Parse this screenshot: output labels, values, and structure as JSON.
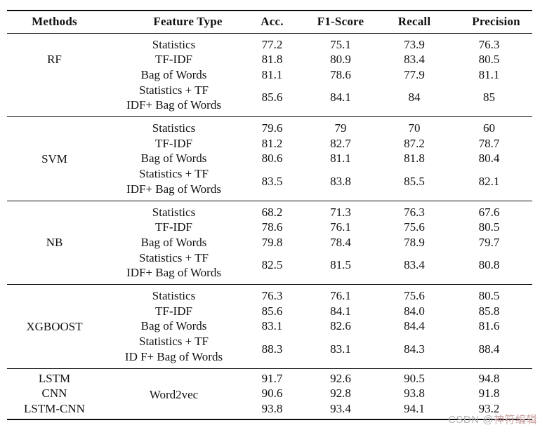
{
  "table": {
    "headers": [
      "Methods",
      "Feature Type",
      "Acc.",
      "F1-Score",
      "Recall",
      "Precision"
    ],
    "sections": [
      {
        "method": "RF",
        "rows": [
          {
            "feature": "Statistics",
            "values": [
              "77.2",
              "75.1",
              "73.9",
              "76.3"
            ]
          },
          {
            "feature": "TF-IDF",
            "values": [
              "81.8",
              "80.9",
              "83.4",
              "80.5"
            ]
          },
          {
            "feature": "Bag of Words",
            "values": [
              "81.1",
              "78.6",
              "77.9",
              "81.1"
            ]
          },
          {
            "feature_line1": "Statistics + TF",
            "feature_line2": "IDF+ Bag of Words",
            "values": [
              "85.6",
              "84.1",
              "84",
              "85"
            ]
          }
        ]
      },
      {
        "method": "SVM",
        "rows": [
          {
            "feature": "Statistics",
            "values": [
              "79.6",
              "79",
              "70",
              "60"
            ]
          },
          {
            "feature": "TF-IDF",
            "values": [
              "81.2",
              "82.7",
              "87.2",
              "78.7"
            ]
          },
          {
            "feature": "Bag of Words",
            "values": [
              "80.6",
              "81.1",
              "81.8",
              "80.4"
            ]
          },
          {
            "feature_line1": "Statistics + TF",
            "feature_line2": "IDF+ Bag of Words",
            "values": [
              "83.5",
              "83.8",
              "85.5",
              "82.1"
            ]
          }
        ]
      },
      {
        "method": "NB",
        "rows": [
          {
            "feature": "Statistics",
            "values": [
              "68.2",
              "71.3",
              "76.3",
              "67.6"
            ]
          },
          {
            "feature": "TF-IDF",
            "values": [
              "78.6",
              "76.1",
              "75.6",
              "80.5"
            ]
          },
          {
            "feature": "Bag of Words",
            "values": [
              "79.8",
              "78.4",
              "78.9",
              "79.7"
            ]
          },
          {
            "feature_line1": "Statistics + TF",
            "feature_line2": "IDF+ Bag of Words",
            "values": [
              "82.5",
              "81.5",
              "83.4",
              "80.8"
            ]
          }
        ]
      },
      {
        "method": "XGBOOST",
        "rows": [
          {
            "feature": "Statistics",
            "values": [
              "76.3",
              "76.1",
              "75.6",
              "80.5"
            ]
          },
          {
            "feature": "TF-IDF",
            "values": [
              "85.6",
              "84.1",
              "84.0",
              "85.8"
            ]
          },
          {
            "feature": "Bag of Words",
            "values": [
              "83.1",
              "82.6",
              "84.4",
              "81.6"
            ]
          },
          {
            "feature_line1": "Statistics + TF",
            "feature_line2": "ID F+ Bag of Words",
            "values": [
              "88.3",
              "83.1",
              "84.3",
              "88.4"
            ]
          }
        ]
      },
      {
        "feature": "Word2vec",
        "rows": [
          {
            "method": "LSTM",
            "values": [
              "91.7",
              "92.6",
              "90.5",
              "94.8"
            ]
          },
          {
            "method": "CNN",
            "values": [
              "90.6",
              "92.8",
              "93.8",
              "91.8"
            ]
          },
          {
            "method": "LSTM-CNN",
            "values": [
              "93.8",
              "93.4",
              "94.1",
              "93.2"
            ]
          }
        ]
      }
    ]
  },
  "watermark": {
    "prefix": "CSDN @",
    "name": "神符编辑"
  },
  "colors": {
    "rule": "#0d0d0d",
    "text": "#111111",
    "watermark_prefix": "#b7b3b3",
    "watermark_name": "#c89e9e"
  }
}
